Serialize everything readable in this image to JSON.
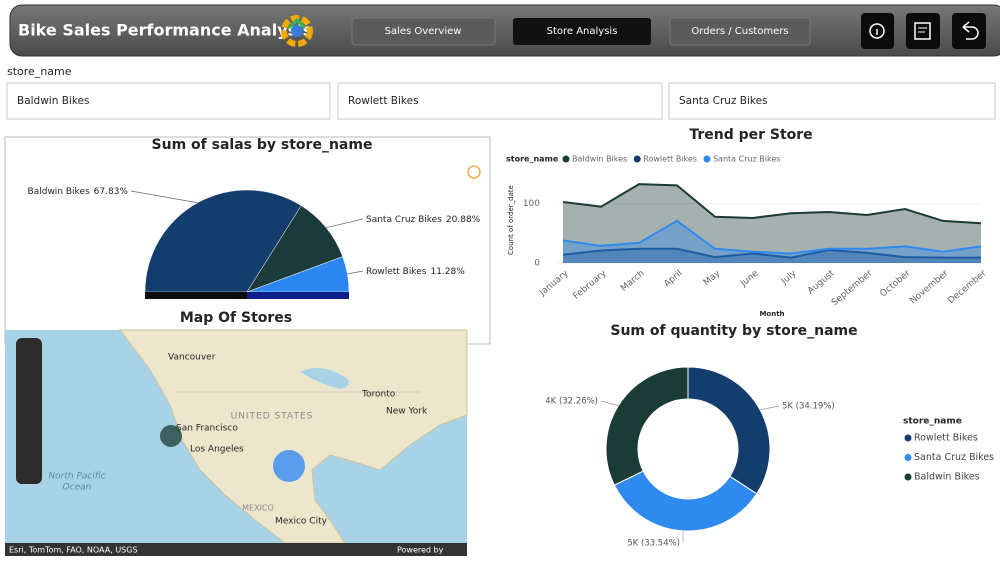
{
  "header": {
    "title": "Bike Sales Performance Analysis",
    "nav": [
      "Sales Overview",
      "Store Analysis",
      "Orders / Customers"
    ]
  },
  "slicer": {
    "label": "store_name",
    "options": [
      "Baldwin Bikes",
      "Rowlett Bikes",
      "Santa Cruz Bikes"
    ]
  },
  "map": {
    "title": "Map Of Stores",
    "places": [
      "Vancouver",
      "Toronto",
      "New York",
      "San Francisco",
      "Los Angeles",
      "Mexico City"
    ],
    "regions": [
      "UNITED STATES",
      "MEXICO",
      "North Pacific",
      "Ocean"
    ],
    "attribution": "Esri, TomTom, FAO, NOAA, USGS",
    "powered": "Powered by"
  },
  "chart_data": [
    {
      "type": "pie",
      "title": "Sum of salas by store_name",
      "categories": [
        "Baldwin Bikes",
        "Santa Cruz Bikes",
        "Rowlett Bikes"
      ],
      "values": [
        67.83,
        20.88,
        11.28
      ],
      "value_labels": [
        "67.83%",
        "20.88%",
        "11.28%"
      ],
      "colors": [
        "#133d6c",
        "#1b3b3a",
        "#2b86f0"
      ]
    },
    {
      "type": "area",
      "title": "Trend per Store",
      "legend_title": "store_name",
      "x_label": "Month",
      "y_label": "Count of order_date",
      "categories": [
        "January",
        "February",
        "March",
        "April",
        "May",
        "June",
        "July",
        "August",
        "September",
        "October",
        "November",
        "December"
      ],
      "series": [
        {
          "name": "Baldwin Bikes",
          "color": "#1b3b37",
          "values": [
            103,
            95,
            133,
            131,
            78,
            76,
            84,
            86,
            81,
            91,
            71,
            67
          ]
        },
        {
          "name": "Rowlett Bikes",
          "color": "#123e6e",
          "values": [
            14,
            21,
            24,
            24,
            10,
            16,
            9,
            22,
            17,
            10,
            9,
            9
          ]
        },
        {
          "name": "Santa Cruz Bikes",
          "color": "#2f8af0",
          "values": [
            38,
            29,
            34,
            71,
            24,
            19,
            16,
            24,
            24,
            28,
            19,
            28
          ]
        }
      ],
      "ylim": [
        0,
        140
      ],
      "yticks": [
        0,
        100
      ]
    },
    {
      "type": "donut",
      "title": "Sum of quantity by store_name",
      "legend_title": "store_name",
      "categories": [
        "Rowlett Bikes",
        "Santa Cruz Bikes",
        "Baldwin Bikes"
      ],
      "values": [
        34.19,
        33.54,
        32.26
      ],
      "value_labels": [
        "5K (34.19%)",
        "5K (33.54%)",
        "4K (32.26%)"
      ],
      "colors": [
        "#133d6c",
        "#2f8af0",
        "#1b3b37"
      ]
    }
  ]
}
